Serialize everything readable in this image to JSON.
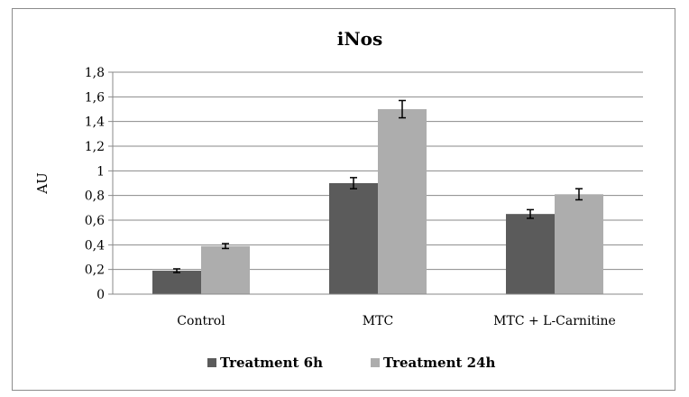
{
  "chart_data": {
    "type": "bar",
    "title": "iNos",
    "xlabel": "",
    "ylabel": "AU",
    "categories": [
      "Control",
      "MTC",
      "MTC + L-Carnitine"
    ],
    "series": [
      {
        "name": "Treatment 6h",
        "values": [
          0.19,
          0.9,
          0.65
        ],
        "errors": [
          0.015,
          0.045,
          0.035
        ],
        "color": "#5b5b5b"
      },
      {
        "name": "Treatment 24h",
        "values": [
          0.39,
          1.5,
          0.81
        ],
        "errors": [
          0.02,
          0.07,
          0.045
        ],
        "color": "#adadad"
      }
    ],
    "ylim": [
      0,
      1.8
    ],
    "yticks": [
      "0",
      "0,2",
      "0,4",
      "0,6",
      "0,8",
      "1",
      "1,2",
      "1,4",
      "1,6",
      "1,8"
    ],
    "grid": true,
    "legend": "bottom"
  }
}
